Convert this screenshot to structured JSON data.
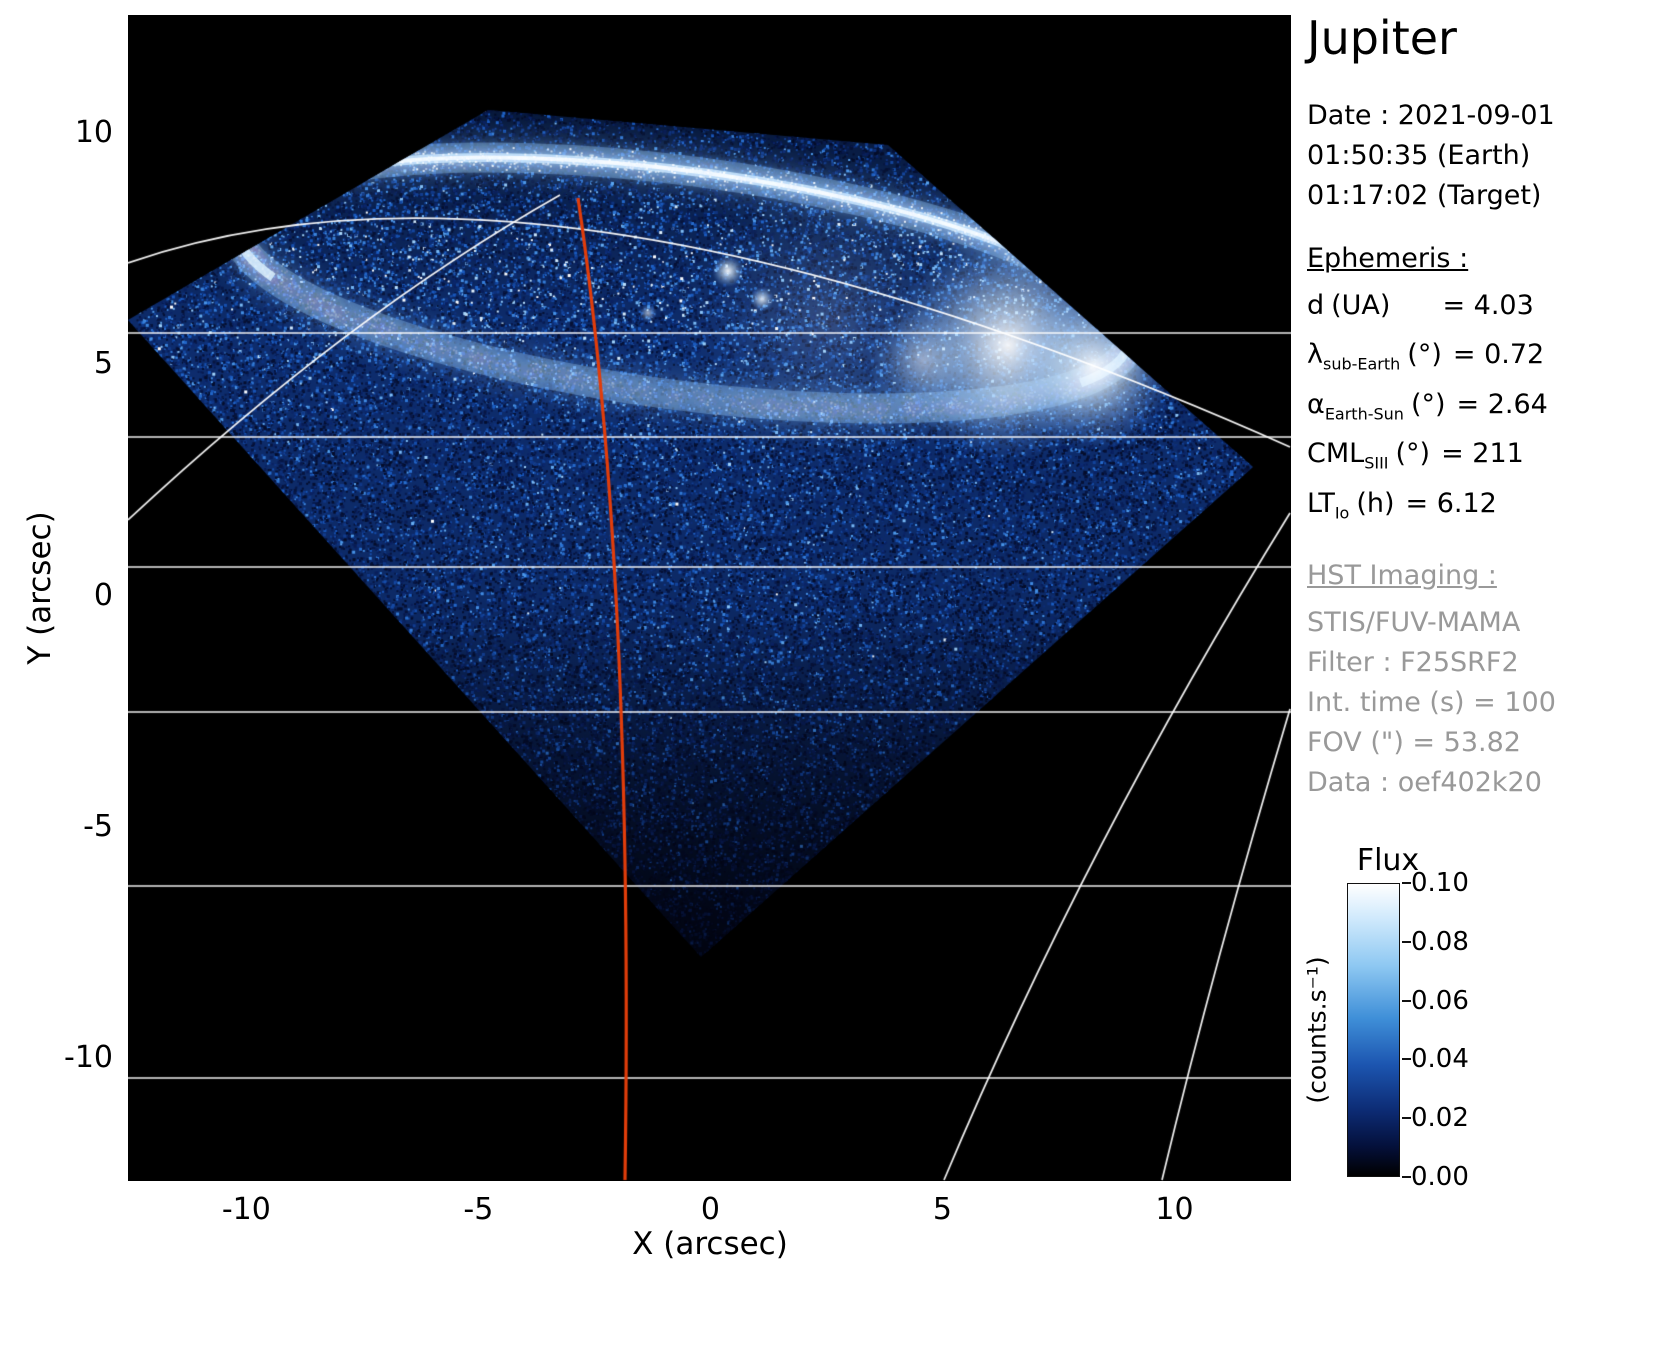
{
  "title": "Jupiter",
  "observation": {
    "date": "Date : 2021-09-01",
    "time_earth": "01:50:35 (Earth)",
    "time_target": "01:17:02 (Target)"
  },
  "ephemeris": {
    "heading": "Ephemeris :",
    "rows": [
      {
        "sym": "d",
        "sub": "",
        "unit": "(UA)",
        "val": "= 4.03"
      },
      {
        "sym": "λ",
        "sub": "sub-Earth",
        "unit": "(°)",
        "val": "= 0.72"
      },
      {
        "sym": "α",
        "sub": "Earth-Sun",
        "unit": "(°)",
        "val": "= 2.64"
      },
      {
        "sym": "CML",
        "sub": "SIII",
        "unit": "(°)",
        "val": "= 211"
      },
      {
        "sym": "LT",
        "sub": "Io",
        "unit": "(h)",
        "val": "= 6.12"
      }
    ]
  },
  "hst": {
    "heading": "HST Imaging :",
    "lines": [
      "STIS/FUV-MAMA",
      "Filter : F25SRF2",
      "Int. time (s) = 100",
      "FOV (\") = 53.82",
      "Data : oef402k20"
    ]
  },
  "colorbar": {
    "title": "Flux",
    "unit": "(counts.s⁻¹)",
    "tick_labels": [
      "0.10",
      "0.08",
      "0.06",
      "0.04",
      "0.02",
      "0.00"
    ]
  },
  "chart_data": {
    "type": "heatmap",
    "title": "Jupiter",
    "xlabel": "X (arcsec)",
    "ylabel": "Y (arcsec)",
    "xlim": [
      -12.55,
      12.51
    ],
    "ylim": [
      -12.64,
      12.58
    ],
    "xticks": [
      -10,
      -5,
      0,
      5,
      10
    ],
    "yticks": [
      10,
      5,
      0,
      -5,
      -10
    ],
    "colorbar": {
      "title": "Flux",
      "unit": "(counts.s⁻¹)",
      "min": 0.0,
      "max": 0.1,
      "ticks": [
        0.1,
        0.08,
        0.06,
        0.04,
        0.02,
        0.0
      ]
    },
    "colors": {
      "background": "#000000",
      "noise_mid_blue": "#1a58c2",
      "aurora_bright": "#ffffff",
      "graticule": "#ffffff",
      "cml_line": "#e23d0a"
    },
    "description": "HST STIS FUV-MAMA image of Jupiter's northern UV aurora: diamond/pentagon-shaped detector field of view filled with blue photon-counting noise on black background; bright white auroral main oval near the top with an intense emission region on its right side and small footprint spots inside; white planetary latitude/longitude graticule lines overlaid across the frame; red central-meridian (CML) line running nearly vertically."
  }
}
